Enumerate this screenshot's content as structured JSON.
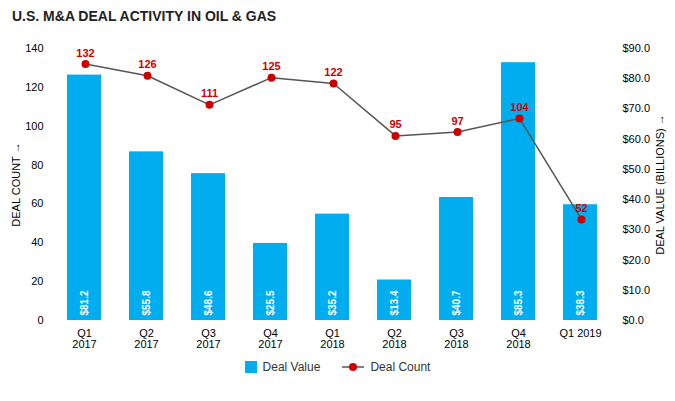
{
  "chart_data": {
    "type": "bar",
    "title": "U.S. M&A DEAL ACTIVITY IN OIL & GAS",
    "categories": [
      "Q1\n2017",
      "Q2\n2017",
      "Q3\n2017",
      "Q4\n2017",
      "Q1\n2018",
      "Q2\n2018",
      "Q3\n2018",
      "Q4\n2018",
      "Q1 2019"
    ],
    "ylabel": "DEAL COUNT",
    "y2label": "DEAL VALUE (BILLIONS)",
    "ylim": [
      0,
      140
    ],
    "yticks": [
      0,
      20,
      40,
      60,
      80,
      100,
      120,
      140
    ],
    "y2lim": [
      0,
      90
    ],
    "y2ticks": [
      {
        "value": 0,
        "label": "$0.0"
      },
      {
        "value": 10,
        "label": "$10.0"
      },
      {
        "value": 20,
        "label": "$20.0"
      },
      {
        "value": 30,
        "label": "$30.0"
      },
      {
        "value": 40,
        "label": "$40.0"
      },
      {
        "value": 50,
        "label": "$50.0"
      },
      {
        "value": 60,
        "label": "$60.0"
      },
      {
        "value": 70,
        "label": "$70.0"
      },
      {
        "value": 80,
        "label": "$80.0"
      },
      {
        "value": 90,
        "label": "$90.0"
      }
    ],
    "grid": false,
    "legend": "bottom",
    "series": [
      {
        "name": "Deal Value",
        "type": "bar",
        "axis": "y2",
        "color": "#00AEEF",
        "values": [
          81.2,
          55.8,
          48.6,
          25.5,
          35.2,
          13.4,
          40.7,
          85.3,
          38.3
        ],
        "value_labels": [
          "$81.2",
          "$55.8",
          "$48.6",
          "$25.5",
          "$35.2",
          "$13.4",
          "$40.7",
          "$85.3",
          "$38.3"
        ],
        "data_labels": true
      },
      {
        "name": "Deal Count",
        "type": "line",
        "color": "#555555",
        "marker": "o",
        "colors": [
          "#CC0000",
          "#CC0000",
          "#CC0000",
          "#CC0000",
          "#CC0000",
          "#CC0000",
          "#CC0000",
          "#CC0000",
          "#CC0000"
        ],
        "values": [
          132,
          126,
          111,
          125,
          122,
          95,
          97,
          104,
          52
        ],
        "data_labels": true
      }
    ]
  }
}
